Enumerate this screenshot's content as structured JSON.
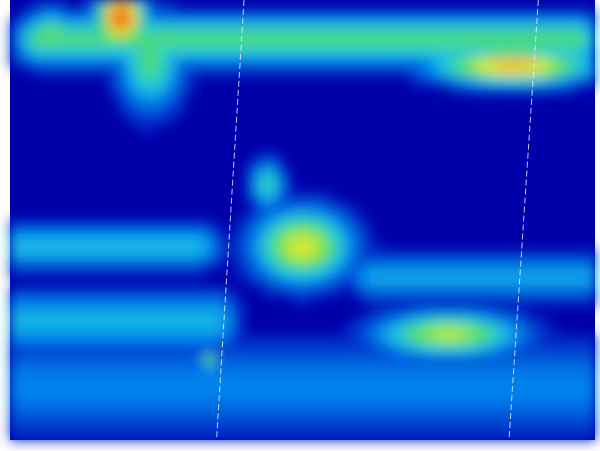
{
  "chart_data": {
    "type": "heatmap",
    "title": "",
    "xlabel": "",
    "ylabel": "",
    "colormap": [
      "#0000aa",
      "#0033cc",
      "#0088ee",
      "#22ccdd",
      "#55dd66",
      "#ccee33",
      "#ffaa22",
      "#ee3322"
    ],
    "background_color": "#0000aa",
    "x_cells": 30,
    "y_cells": 23,
    "intensity_range": [
      0,
      1
    ],
    "features": [
      {
        "name": "top-band",
        "kind": "band",
        "x": [
          0.05,
          0.97
        ],
        "y": 0.09,
        "spread": 0.04,
        "intensity": 0.55
      },
      {
        "name": "top-left-spot",
        "kind": "blob",
        "x": 0.07,
        "y": 0.08,
        "sx": 0.03,
        "sy": 0.04,
        "intensity": 0.6
      },
      {
        "name": "top-peak",
        "kind": "blob",
        "x": 0.19,
        "y": 0.04,
        "sx": 0.03,
        "sy": 0.05,
        "intensity": 1.0
      },
      {
        "name": "top-tail",
        "kind": "blob",
        "x": 0.24,
        "y": 0.14,
        "sx": 0.04,
        "sy": 0.08,
        "intensity": 0.55
      },
      {
        "name": "top-right-hot",
        "kind": "blob",
        "x": 0.86,
        "y": 0.15,
        "sx": 0.1,
        "sy": 0.03,
        "intensity": 0.85
      },
      {
        "name": "mid-upper-band",
        "kind": "band",
        "x": [
          0.0,
          0.32
        ],
        "y": 0.56,
        "spread": 0.035,
        "intensity": 0.4
      },
      {
        "name": "mid-lower-band",
        "kind": "band",
        "x": [
          0.62,
          1.0
        ],
        "y": 0.63,
        "spread": 0.035,
        "intensity": 0.35
      },
      {
        "name": "center-stem",
        "kind": "blob",
        "x": 0.44,
        "y": 0.42,
        "sx": 0.02,
        "sy": 0.04,
        "intensity": 0.5
      },
      {
        "name": "center-blob",
        "kind": "blob",
        "x": 0.5,
        "y": 0.56,
        "sx": 0.06,
        "sy": 0.06,
        "intensity": 0.75
      },
      {
        "name": "lower-right-blob",
        "kind": "blob",
        "x": 0.75,
        "y": 0.76,
        "sx": 0.09,
        "sy": 0.035,
        "intensity": 0.7
      },
      {
        "name": "bottom-band",
        "kind": "band",
        "x": [
          0.0,
          0.35
        ],
        "y": 0.73,
        "spread": 0.05,
        "intensity": 0.38
      },
      {
        "name": "bottom-floor",
        "kind": "band",
        "x": [
          0.0,
          1.0
        ],
        "y": 0.88,
        "spread": 0.08,
        "intensity": 0.28
      },
      {
        "name": "small-dot",
        "kind": "blob",
        "x": 0.34,
        "y": 0.82,
        "sx": 0.012,
        "sy": 0.015,
        "intensity": 0.6
      }
    ],
    "guide_lines": [
      {
        "name": "guide-line-1",
        "x_top": 0.4,
        "x_bottom": 0.353
      },
      {
        "name": "guide-line-2",
        "x_top": 0.903,
        "x_bottom": 0.853
      }
    ]
  }
}
